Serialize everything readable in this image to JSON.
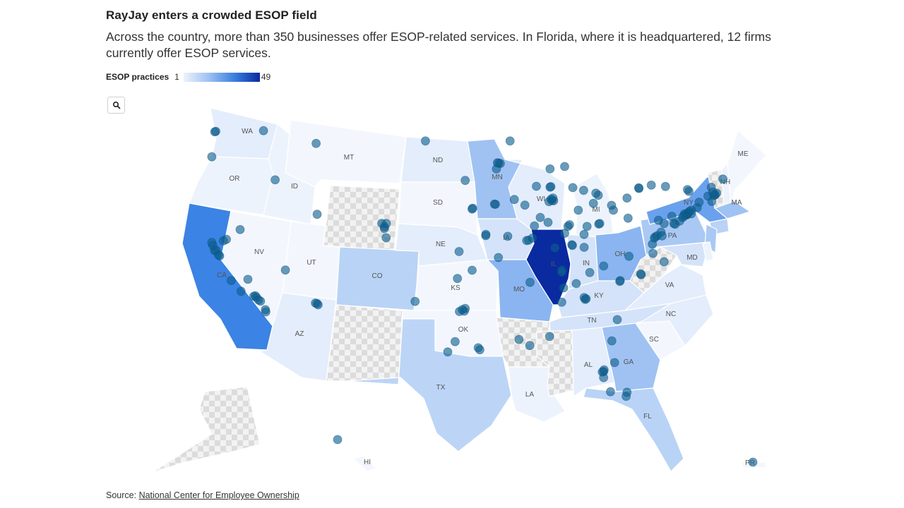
{
  "title": "RayJay enters a crowded ESOP field",
  "subtitle": "Across the country, more than 350 businesses offer ESOP-related services. In Florida, where it is headquartered, 12 firms currently offer ESOP services.",
  "legend": {
    "label": "ESOP practices",
    "min": "1",
    "max": "49",
    "colors": [
      "#eef3fb",
      "#0a2aa0"
    ]
  },
  "zoom_button": {
    "icon": "search-icon"
  },
  "source": {
    "prefix": "Source:",
    "link_text": "National Center for Employee Ownership"
  },
  "states": [
    {
      "abbr": "WA",
      "fill": "#e4edfb"
    },
    {
      "abbr": "OR",
      "fill": "#edf3fc"
    },
    {
      "abbr": "CA",
      "fill": "#3b83e4"
    },
    {
      "abbr": "ID",
      "fill": "#edf3fc"
    },
    {
      "abbr": "NV",
      "fill": "#f3f7fd"
    },
    {
      "abbr": "MT",
      "fill": "#f3f7fd"
    },
    {
      "abbr": "WY",
      "fill": "nodata"
    },
    {
      "abbr": "UT",
      "fill": "#f3f7fd"
    },
    {
      "abbr": "CO",
      "fill": "#b9d3f6"
    },
    {
      "abbr": "AZ",
      "fill": "#e4edfb"
    },
    {
      "abbr": "NM",
      "fill": "nodata"
    },
    {
      "abbr": "ND",
      "fill": "#e4edfb"
    },
    {
      "abbr": "SD",
      "fill": "#f3f7fd"
    },
    {
      "abbr": "NE",
      "fill": "#e4edfb"
    },
    {
      "abbr": "KS",
      "fill": "#f3f7fd"
    },
    {
      "abbr": "OK",
      "fill": "#f3f7fd"
    },
    {
      "abbr": "TX",
      "fill": "#bcd5f7"
    },
    {
      "abbr": "MN",
      "fill": "#9fc2f3"
    },
    {
      "abbr": "IA",
      "fill": "#d4e3f9"
    },
    {
      "abbr": "MO",
      "fill": "#8ab5f1"
    },
    {
      "abbr": "AR",
      "fill": "nodata"
    },
    {
      "abbr": "LA",
      "fill": "#edf3fc"
    },
    {
      "abbr": "WI",
      "fill": "#e4edfb"
    },
    {
      "abbr": "IL",
      "fill": "#0a2aa0"
    },
    {
      "abbr": "IN",
      "fill": "#d4e3f9"
    },
    {
      "abbr": "MI",
      "fill": "#edf3fc"
    },
    {
      "abbr": "OH",
      "fill": "#8ab5f1"
    },
    {
      "abbr": "KY",
      "fill": "#d4e3f9"
    },
    {
      "abbr": "TN",
      "fill": "#d4e3f9"
    },
    {
      "abbr": "MS",
      "fill": "nodata"
    },
    {
      "abbr": "AL",
      "fill": "#e4edfb"
    },
    {
      "abbr": "GA",
      "fill": "#9fc2f3"
    },
    {
      "abbr": "FL",
      "fill": "#b9d3f6"
    },
    {
      "abbr": "SC",
      "fill": "#f3f7fd"
    },
    {
      "abbr": "NC",
      "fill": "#e4edfb"
    },
    {
      "abbr": "VA",
      "fill": "#e4edfb"
    },
    {
      "abbr": "WV",
      "fill": "nodata"
    },
    {
      "abbr": "PA",
      "fill": "#a9c9f4"
    },
    {
      "abbr": "NY",
      "fill": "#6aa1ec"
    },
    {
      "abbr": "VT",
      "fill": "nodata"
    },
    {
      "abbr": "NH",
      "fill": "#edf3fc"
    },
    {
      "abbr": "ME",
      "fill": "#f3f7fd"
    },
    {
      "abbr": "MA",
      "fill": "#9fc2f3"
    },
    {
      "abbr": "CT",
      "fill": "#b9d3f6"
    },
    {
      "abbr": "NJ",
      "fill": "#a9c9f4"
    },
    {
      "abbr": "MD",
      "fill": "#d4e3f9"
    },
    {
      "abbr": "DE",
      "fill": "#edf3fc"
    },
    {
      "abbr": "AK",
      "fill": "nodata"
    },
    {
      "abbr": "HI",
      "fill": "#f3f7fd"
    },
    {
      "abbr": "PR",
      "fill": "#f3f7fd"
    }
  ],
  "state_labels": [
    "WA",
    "OR",
    "CA",
    "ID",
    "NV",
    "MT",
    "UT",
    "CO",
    "AZ",
    "ND",
    "SD",
    "NE",
    "KS",
    "OK",
    "TX",
    "MN",
    "IA",
    "MO",
    "LA",
    "WI",
    "IL",
    "IN",
    "MI",
    "OH",
    "KY",
    "TN",
    "AL",
    "GA",
    "FL",
    "SC",
    "NC",
    "VA",
    "PA",
    "NY",
    "NH",
    "ME",
    "MA",
    "MD",
    "HI",
    "PR"
  ],
  "firm_locations": [
    {
      "lon": -122.3,
      "lat": 47.6
    },
    {
      "lon": -122.4,
      "lat": 47.55
    },
    {
      "lon": -117.4,
      "lat": 47.65
    },
    {
      "lon": -122.7,
      "lat": 45.5
    },
    {
      "lon": -116.2,
      "lat": 43.6
    },
    {
      "lon": -112.0,
      "lat": 46.6
    },
    {
      "lon": -111.9,
      "lat": 40.76
    },
    {
      "lon": -119.8,
      "lat": 39.5
    },
    {
      "lon": -122.42,
      "lat": 37.77
    },
    {
      "lon": -122.27,
      "lat": 37.8
    },
    {
      "lon": -122.0,
      "lat": 37.4
    },
    {
      "lon": -121.9,
      "lat": 37.33
    },
    {
      "lon": -121.5,
      "lat": 38.58
    },
    {
      "lon": -121.2,
      "lat": 38.7
    },
    {
      "lon": -122.6,
      "lat": 38.2
    },
    {
      "lon": -122.7,
      "lat": 38.44
    },
    {
      "lon": -120.7,
      "lat": 35.3
    },
    {
      "lon": -119.0,
      "lat": 35.4
    },
    {
      "lon": -118.25,
      "lat": 34.05
    },
    {
      "lon": -118.4,
      "lat": 34.0
    },
    {
      "lon": -118.1,
      "lat": 33.9
    },
    {
      "lon": -117.9,
      "lat": 33.7
    },
    {
      "lon": -117.7,
      "lat": 33.6
    },
    {
      "lon": -117.16,
      "lat": 32.72
    },
    {
      "lon": -117.2,
      "lat": 32.9
    },
    {
      "lon": -119.7,
      "lat": 34.42
    },
    {
      "lon": -115.15,
      "lat": 36.17
    },
    {
      "lon": -112.07,
      "lat": 33.45
    },
    {
      "lon": -111.9,
      "lat": 33.4
    },
    {
      "lon": -111.8,
      "lat": 33.3
    },
    {
      "lon": -104.99,
      "lat": 39.74
    },
    {
      "lon": -105.0,
      "lat": 39.6
    },
    {
      "lon": -104.8,
      "lat": 40.0
    },
    {
      "lon": -105.27,
      "lat": 40.01
    },
    {
      "lon": -104.82,
      "lat": 38.83
    },
    {
      "lon": -100.78,
      "lat": 46.8
    },
    {
      "lon": -96.7,
      "lat": 43.55
    },
    {
      "lon": -95.93,
      "lat": 41.26
    },
    {
      "lon": -96.0,
      "lat": 41.2
    },
    {
      "lon": -97.33,
      "lat": 37.69
    },
    {
      "lon": -97.5,
      "lat": 35.47
    },
    {
      "lon": -95.99,
      "lat": 36.15
    },
    {
      "lon": -96.8,
      "lat": 32.78
    },
    {
      "lon": -97.3,
      "lat": 32.75
    },
    {
      "lon": -96.7,
      "lat": 33.0
    },
    {
      "lon": -97.0,
      "lat": 32.9
    },
    {
      "lon": -95.37,
      "lat": 29.76
    },
    {
      "lon": -95.2,
      "lat": 29.6
    },
    {
      "lon": -98.49,
      "lat": 29.42
    },
    {
      "lon": -97.74,
      "lat": 30.27
    },
    {
      "lon": -101.85,
      "lat": 33.58
    },
    {
      "lon": -93.27,
      "lat": 44.98
    },
    {
      "lon": -93.1,
      "lat": 44.95
    },
    {
      "lon": -93.4,
      "lat": 45.0
    },
    {
      "lon": -92.1,
      "lat": 46.8
    },
    {
      "lon": -93.5,
      "lat": 44.5
    },
    {
      "lon": -93.6,
      "lat": 41.59
    },
    {
      "lon": -91.67,
      "lat": 41.98
    },
    {
      "lon": -93.7,
      "lat": 41.6
    },
    {
      "lon": -90.58,
      "lat": 41.52
    },
    {
      "lon": -90.2,
      "lat": 38.63
    },
    {
      "lon": -90.4,
      "lat": 38.6
    },
    {
      "lon": -94.58,
      "lat": 39.1
    },
    {
      "lon": -94.6,
      "lat": 39.0
    },
    {
      "lon": -92.33,
      "lat": 38.95
    },
    {
      "lon": -93.3,
      "lat": 37.2
    },
    {
      "lon": -91.19,
      "lat": 30.45
    },
    {
      "lon": -90.07,
      "lat": 29.95
    },
    {
      "lon": -87.91,
      "lat": 43.04
    },
    {
      "lon": -88.0,
      "lat": 43.0
    },
    {
      "lon": -89.4,
      "lat": 43.07
    },
    {
      "lon": -88.0,
      "lat": 44.5
    },
    {
      "lon": -87.63,
      "lat": 41.88
    },
    {
      "lon": -87.8,
      "lat": 41.9
    },
    {
      "lon": -87.9,
      "lat": 42.0
    },
    {
      "lon": -88.1,
      "lat": 41.8
    },
    {
      "lon": -87.7,
      "lat": 42.1
    },
    {
      "lon": -89.6,
      "lat": 39.8
    },
    {
      "lon": -88.2,
      "lat": 40.1
    },
    {
      "lon": -89.0,
      "lat": 40.5
    },
    {
      "lon": -89.8,
      "lat": 38.8
    },
    {
      "lon": -86.16,
      "lat": 39.77
    },
    {
      "lon": -86.0,
      "lat": 39.9
    },
    {
      "lon": -85.1,
      "lat": 41.1
    },
    {
      "lon": -86.5,
      "lat": 39.2
    },
    {
      "lon": -87.5,
      "lat": 38.0
    },
    {
      "lon": -83.05,
      "lat": 42.33
    },
    {
      "lon": -83.3,
      "lat": 42.5
    },
    {
      "lon": -85.67,
      "lat": 42.96
    },
    {
      "lon": -84.55,
      "lat": 42.73
    },
    {
      "lon": -86.5,
      "lat": 44.7
    },
    {
      "lon": -81.69,
      "lat": 41.5
    },
    {
      "lon": -81.5,
      "lat": 41.1
    },
    {
      "lon": -83.0,
      "lat": 39.96
    },
    {
      "lon": -82.9,
      "lat": 40.0
    },
    {
      "lon": -84.51,
      "lat": 39.1
    },
    {
      "lon": -84.2,
      "lat": 39.76
    },
    {
      "lon": -83.55,
      "lat": 41.66
    },
    {
      "lon": -85.76,
      "lat": 38.25
    },
    {
      "lon": -85.7,
      "lat": 38.2
    },
    {
      "lon": -84.5,
      "lat": 38.04
    },
    {
      "lon": -86.78,
      "lat": 36.16
    },
    {
      "lon": -86.8,
      "lat": 36.0
    },
    {
      "lon": -83.92,
      "lat": 35.96
    },
    {
      "lon": -85.31,
      "lat": 35.05
    },
    {
      "lon": -90.05,
      "lat": 35.15
    },
    {
      "lon": -82.5,
      "lat": 36.5
    },
    {
      "lon": -86.8,
      "lat": 33.52
    },
    {
      "lon": -86.6,
      "lat": 34.7
    },
    {
      "lon": -88.04,
      "lat": 30.69
    },
    {
      "lon": -84.39,
      "lat": 33.75
    },
    {
      "lon": -84.3,
      "lat": 33.8
    },
    {
      "lon": -84.5,
      "lat": 33.9
    },
    {
      "lon": -81.1,
      "lat": 32.08
    },
    {
      "lon": -81.66,
      "lat": 30.33
    },
    {
      "lon": -81.38,
      "lat": 28.54
    },
    {
      "lon": -82.46,
      "lat": 27.95
    },
    {
      "lon": -82.5,
      "lat": 27.8
    },
    {
      "lon": -82.64,
      "lat": 27.77
    },
    {
      "lon": -80.19,
      "lat": 25.76
    },
    {
      "lon": -80.1,
      "lat": 26.1
    },
    {
      "lon": -81.8,
      "lat": 26.14
    },
    {
      "lon": -82.5,
      "lat": 27.3
    },
    {
      "lon": -80.84,
      "lat": 35.23
    },
    {
      "lon": -80.8,
      "lat": 35.3
    },
    {
      "lon": -78.64,
      "lat": 35.78
    },
    {
      "lon": -78.7,
      "lat": 35.85
    },
    {
      "lon": -77.44,
      "lat": 37.54
    },
    {
      "lon": -77.2,
      "lat": 38.9
    },
    {
      "lon": -77.3,
      "lat": 38.8
    },
    {
      "lon": -79.9,
      "lat": 37.3
    },
    {
      "lon": -76.3,
      "lat": 36.85
    },
    {
      "lon": -77.5,
      "lat": 38.3
    },
    {
      "lon": -76.61,
      "lat": 39.29
    },
    {
      "lon": -77.0,
      "lat": 39.0
    },
    {
      "lon": -76.5,
      "lat": 38.98
    },
    {
      "lon": -75.16,
      "lat": 39.95
    },
    {
      "lon": -75.3,
      "lat": 40.0
    },
    {
      "lon": -79.99,
      "lat": 40.44
    },
    {
      "lon": -76.88,
      "lat": 40.27
    },
    {
      "lon": -75.5,
      "lat": 40.6
    },
    {
      "lon": -76.3,
      "lat": 40.0
    },
    {
      "lon": -80.1,
      "lat": 42.1
    },
    {
      "lon": -74.0,
      "lat": 40.71
    },
    {
      "lon": -73.9,
      "lat": 40.75
    },
    {
      "lon": -74.2,
      "lat": 40.8
    },
    {
      "lon": -74.1,
      "lat": 40.7
    },
    {
      "lon": -73.8,
      "lat": 40.9
    },
    {
      "lon": -73.7,
      "lat": 41.0
    },
    {
      "lon": -74.4,
      "lat": 40.5
    },
    {
      "lon": -74.3,
      "lat": 40.6
    },
    {
      "lon": -74.7,
      "lat": 40.2
    },
    {
      "lon": -73.5,
      "lat": 40.8
    },
    {
      "lon": -78.88,
      "lat": 42.89
    },
    {
      "lon": -78.9,
      "lat": 42.95
    },
    {
      "lon": -77.61,
      "lat": 43.16
    },
    {
      "lon": -76.15,
      "lat": 43.05
    },
    {
      "lon": -73.75,
      "lat": 42.65
    },
    {
      "lon": -73.9,
      "lat": 42.8
    },
    {
      "lon": -72.9,
      "lat": 41.3
    },
    {
      "lon": -72.7,
      "lat": 41.76
    },
    {
      "lon": -73.5,
      "lat": 41.1
    },
    {
      "lon": -71.06,
      "lat": 42.36
    },
    {
      "lon": -71.1,
      "lat": 42.4
    },
    {
      "lon": -71.2,
      "lat": 42.3
    },
    {
      "lon": -71.8,
      "lat": 42.26
    },
    {
      "lon": -71.4,
      "lat": 41.82
    },
    {
      "lon": -70.9,
      "lat": 42.5
    },
    {
      "lon": -71.45,
      "lat": 42.99
    },
    {
      "lon": -70.26,
      "lat": 43.66
    },
    {
      "lon": -71.3,
      "lat": 42.6
    },
    {
      "lon": -157.86,
      "lat": 21.31
    },
    {
      "lon": -66.1,
      "lat": 18.47
    }
  ]
}
